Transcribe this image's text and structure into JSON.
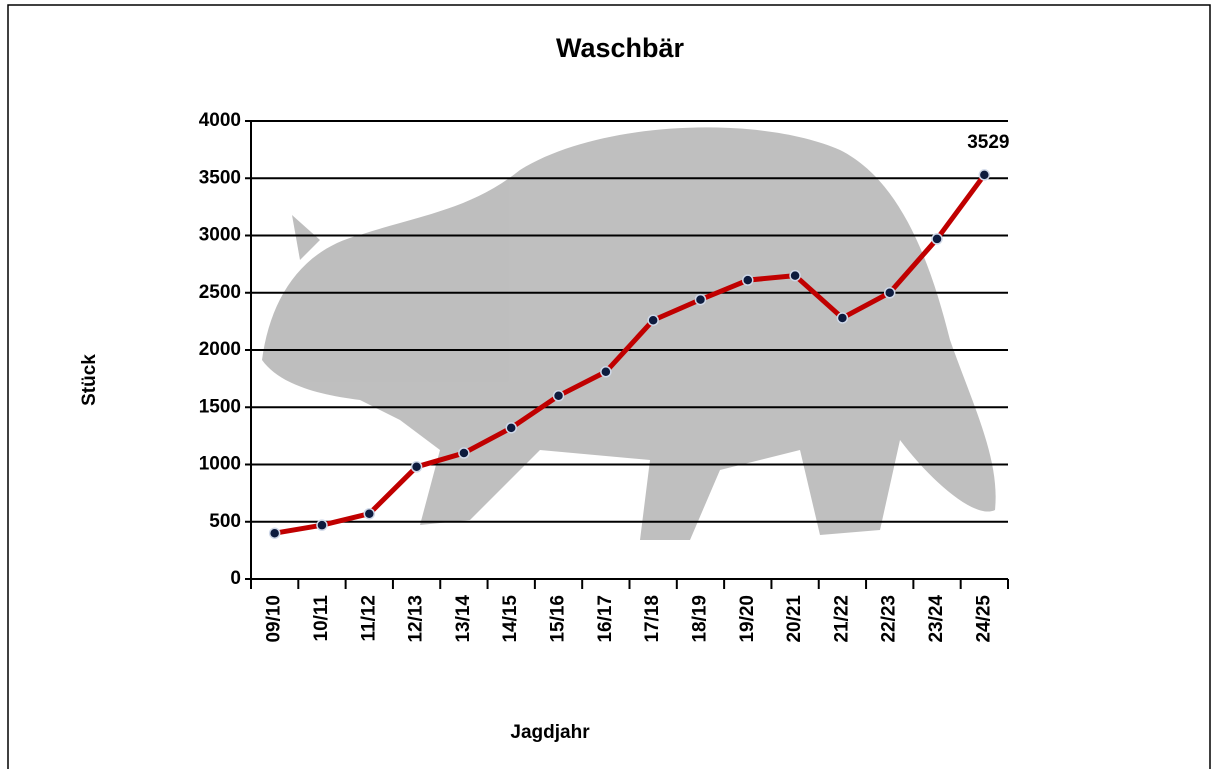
{
  "chart_data": {
    "type": "line",
    "title": "Waschbär",
    "x_label": "Jagdjahr",
    "y_label": "Stück",
    "categories": [
      "09/10",
      "10/11",
      "11/12",
      "12/13",
      "13/14",
      "14/15",
      "15/16",
      "16/17",
      "17/18",
      "18/19",
      "19/20",
      "20/21",
      "21/22",
      "22/23",
      "23/24",
      "24/25"
    ],
    "series": [
      {
        "name": "Waschbär",
        "color": "#c00000",
        "marker_color": "#0d1b3e",
        "values": [
          400,
          470,
          570,
          980,
          1100,
          1320,
          1600,
          1810,
          2260,
          2440,
          2610,
          2650,
          2280,
          2500,
          2970,
          3529
        ]
      }
    ],
    "ylim": [
      0,
      4000
    ],
    "yticks": [
      0,
      500,
      1000,
      1500,
      2000,
      2500,
      3000,
      3500,
      4000
    ],
    "grid": true
  }
}
